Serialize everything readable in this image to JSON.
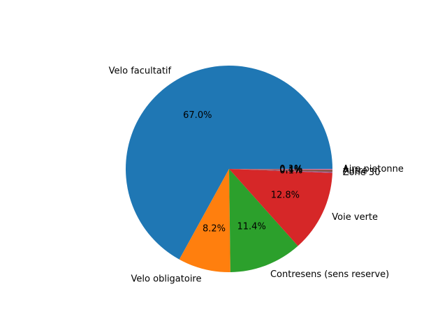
{
  "chart_data": {
    "type": "pie",
    "title": "",
    "slices": [
      {
        "label": "Velo facultatif",
        "value": 67.0,
        "pct_text": "67.0%",
        "color": "#1f77b4"
      },
      {
        "label": "Velo obligatoire",
        "value": 8.2,
        "pct_text": "8.2%",
        "color": "#ff7f0e"
      },
      {
        "label": "Contresens (sens reserve)",
        "value": 11.4,
        "pct_text": "11.4%",
        "color": "#2ca02c"
      },
      {
        "label": "Voie verte",
        "value": 12.8,
        "pct_text": "12.8%",
        "color": "#d62728"
      },
      {
        "label": "Zone 30",
        "value": 0.1,
        "pct_text": "0.1%",
        "color": "#9467bd"
      },
      {
        "label": "Autre",
        "value": 0.4,
        "pct_text": "0.4%",
        "color": "#8c564b"
      },
      {
        "label": "Aire pietonne",
        "value": 0.1,
        "pct_text": "0.1%",
        "color": "#e377c2"
      }
    ],
    "start_angle_deg": 0,
    "direction": "counterclockwise",
    "legend": "none"
  }
}
